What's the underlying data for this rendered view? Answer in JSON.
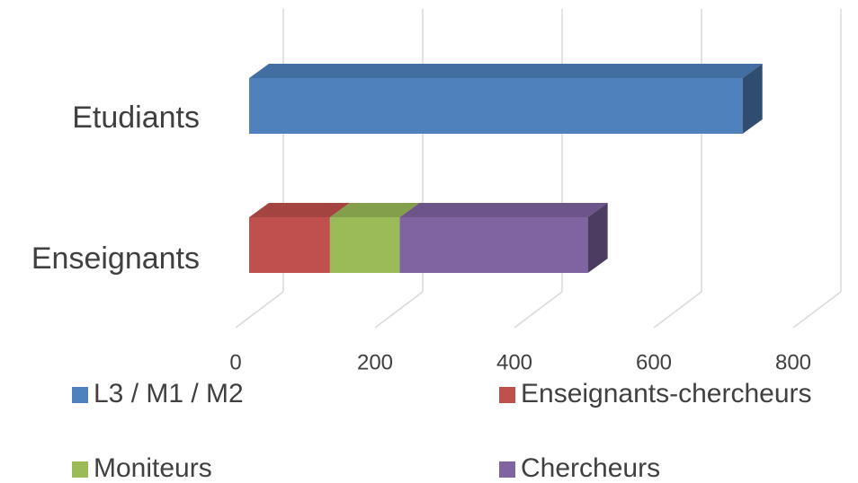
{
  "chart_data": {
    "type": "bar3d_horizontal_stacked",
    "categories": [
      "Etudiants",
      "Enseignants"
    ],
    "series": [
      {
        "name": "L3 / M1 / M2",
        "color": "#4f81bd",
        "values": [
          708,
          null
        ]
      },
      {
        "name": "Enseignants-chercheurs",
        "color": "#c0504d",
        "values": [
          null,
          116
        ]
      },
      {
        "name": "Moniteurs",
        "color": "#9bbb59",
        "values": [
          null,
          100
        ]
      },
      {
        "name": "Chercheurs",
        "color": "#8064a2",
        "values": [
          null,
          270
        ]
      }
    ],
    "xlim": [
      0,
      870
    ],
    "xticks": [
      0,
      200,
      400,
      600,
      800
    ],
    "grid": true
  }
}
